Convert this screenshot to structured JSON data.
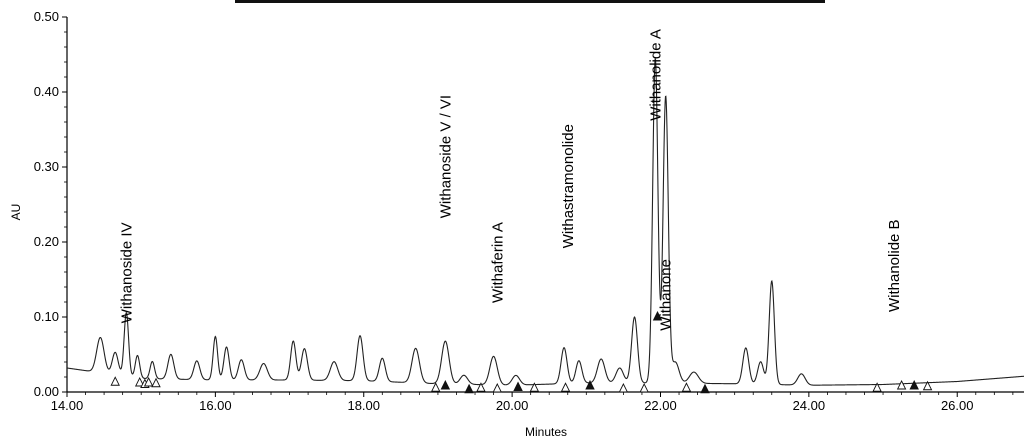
{
  "chart_data": {
    "type": "line",
    "title": "",
    "xlabel": "Minutes",
    "ylabel": "AU",
    "xlim": [
      14.0,
      26.9
    ],
    "ylim": [
      0.0,
      0.5
    ],
    "xticks": [
      "14.00",
      "16.00",
      "18.00",
      "20.00",
      "22.00",
      "24.00",
      "26.00"
    ],
    "yticks": [
      "0.00",
      "0.10",
      "0.20",
      "0.30",
      "0.40",
      "0.50"
    ],
    "grid": false,
    "legend": "none",
    "colors": {
      "trace": "#222222",
      "axis": "#000000"
    },
    "baseline": {
      "x": [
        14.0,
        15.0,
        16.0,
        17.0,
        18.0,
        19.0,
        20.0,
        21.0,
        22.0,
        23.0,
        24.0,
        25.0,
        26.0,
        26.9
      ],
      "y": [
        0.032,
        0.018,
        0.016,
        0.016,
        0.015,
        0.011,
        0.009,
        0.012,
        0.012,
        0.011,
        0.009,
        0.01,
        0.014,
        0.021
      ]
    },
    "peaks": [
      {
        "x": 14.45,
        "y": 0.047,
        "w": 0.05
      },
      {
        "x": 14.8,
        "y": 0.085,
        "w": 0.03
      },
      {
        "x": 14.65,
        "y": 0.03,
        "w": 0.04
      },
      {
        "x": 14.95,
        "y": 0.03,
        "w": 0.03
      },
      {
        "x": 15.15,
        "y": 0.023,
        "w": 0.03
      },
      {
        "x": 15.4,
        "y": 0.033,
        "w": 0.04
      },
      {
        "x": 15.75,
        "y": 0.025,
        "w": 0.04
      },
      {
        "x": 16.0,
        "y": 0.058,
        "w": 0.03
      },
      {
        "x": 16.15,
        "y": 0.044,
        "w": 0.035
      },
      {
        "x": 16.35,
        "y": 0.027,
        "w": 0.04
      },
      {
        "x": 16.65,
        "y": 0.022,
        "w": 0.05
      },
      {
        "x": 17.05,
        "y": 0.052,
        "w": 0.035
      },
      {
        "x": 17.2,
        "y": 0.042,
        "w": 0.04
      },
      {
        "x": 17.6,
        "y": 0.025,
        "w": 0.05
      },
      {
        "x": 17.95,
        "y": 0.06,
        "w": 0.04
      },
      {
        "x": 18.25,
        "y": 0.031,
        "w": 0.04
      },
      {
        "x": 18.7,
        "y": 0.046,
        "w": 0.05
      },
      {
        "x": 19.1,
        "y": 0.057,
        "w": 0.05
      },
      {
        "x": 19.35,
        "y": 0.012,
        "w": 0.05
      },
      {
        "x": 19.75,
        "y": 0.038,
        "w": 0.05
      },
      {
        "x": 20.05,
        "y": 0.013,
        "w": 0.05
      },
      {
        "x": 20.7,
        "y": 0.048,
        "w": 0.04
      },
      {
        "x": 20.9,
        "y": 0.03,
        "w": 0.04
      },
      {
        "x": 21.2,
        "y": 0.032,
        "w": 0.05
      },
      {
        "x": 21.45,
        "y": 0.02,
        "w": 0.05
      },
      {
        "x": 21.65,
        "y": 0.088,
        "w": 0.04
      },
      {
        "x": 21.93,
        "y": 0.433,
        "w": 0.035
      },
      {
        "x": 22.07,
        "y": 0.382,
        "w": 0.035
      },
      {
        "x": 22.2,
        "y": 0.028,
        "w": 0.05
      },
      {
        "x": 22.45,
        "y": 0.015,
        "w": 0.06
      },
      {
        "x": 23.15,
        "y": 0.048,
        "w": 0.04
      },
      {
        "x": 23.35,
        "y": 0.03,
        "w": 0.04
      },
      {
        "x": 23.5,
        "y": 0.138,
        "w": 0.035
      },
      {
        "x": 23.9,
        "y": 0.015,
        "w": 0.05
      }
    ],
    "annotations": [
      {
        "label": "Withanoside IV",
        "x": 14.8,
        "y": 0.165
      },
      {
        "label": "Withanoside V / VI",
        "x": 19.1,
        "y": 0.305
      },
      {
        "label": "Withaferin A",
        "x": 19.8,
        "y": 0.192
      },
      {
        "label": "Withastramonolide",
        "x": 20.75,
        "y": 0.265
      },
      {
        "label": "Withanolide A",
        "x": 21.93,
        "y": 0.435
      },
      {
        "label": "Withanone",
        "x": 22.07,
        "y": 0.155
      },
      {
        "label": "Withanolide B",
        "x": 25.15,
        "y": 0.18
      }
    ],
    "integration_markers": [
      {
        "x": 14.65,
        "y": 0.013,
        "shape": "open"
      },
      {
        "x": 14.98,
        "y": 0.012,
        "shape": "open"
      },
      {
        "x": 15.05,
        "y": 0.01,
        "shape": "open"
      },
      {
        "x": 15.1,
        "y": 0.012,
        "shape": "open"
      },
      {
        "x": 15.2,
        "y": 0.011,
        "shape": "open"
      },
      {
        "x": 18.97,
        "y": 0.005,
        "shape": "open"
      },
      {
        "x": 19.1,
        "y": 0.008,
        "shape": "filled"
      },
      {
        "x": 19.42,
        "y": 0.003,
        "shape": "filled"
      },
      {
        "x": 19.58,
        "y": 0.005,
        "shape": "open"
      },
      {
        "x": 19.8,
        "y": 0.004,
        "shape": "open"
      },
      {
        "x": 20.08,
        "y": 0.006,
        "shape": "filled"
      },
      {
        "x": 20.3,
        "y": 0.005,
        "shape": "open"
      },
      {
        "x": 20.72,
        "y": 0.005,
        "shape": "open"
      },
      {
        "x": 21.05,
        "y": 0.008,
        "shape": "filled"
      },
      {
        "x": 21.5,
        "y": 0.004,
        "shape": "open"
      },
      {
        "x": 21.78,
        "y": 0.004,
        "shape": "open"
      },
      {
        "x": 21.96,
        "y": 0.1,
        "shape": "filled"
      },
      {
        "x": 22.35,
        "y": 0.005,
        "shape": "open"
      },
      {
        "x": 22.6,
        "y": 0.003,
        "shape": "filled"
      },
      {
        "x": 24.92,
        "y": 0.005,
        "shape": "open"
      },
      {
        "x": 25.25,
        "y": 0.008,
        "shape": "open"
      },
      {
        "x": 25.42,
        "y": 0.008,
        "shape": "filled"
      },
      {
        "x": 25.6,
        "y": 0.007,
        "shape": "open"
      }
    ]
  }
}
